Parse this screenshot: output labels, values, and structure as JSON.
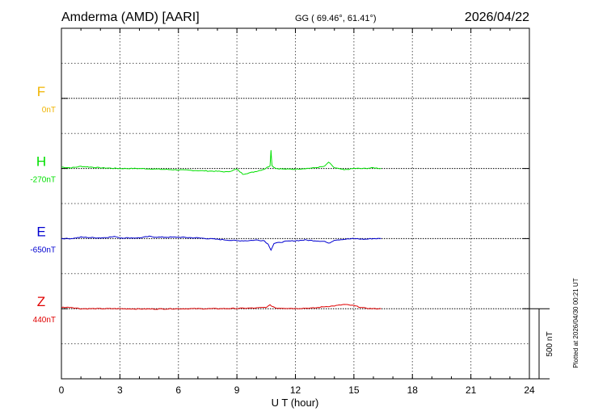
{
  "header": {
    "station": "Amderma (AMD)  [AARI]",
    "coords": "GG ( 69.46°,  61.41°)",
    "date": "2026/04/22"
  },
  "footer": {
    "plotted": "Plotted at 2026/04/30 00:21 UT",
    "scale_label": "500 nT"
  },
  "chart_data": {
    "type": "line",
    "xlabel": "U T (hour)",
    "xlim": [
      0,
      24
    ],
    "xticks": [
      "0",
      "3",
      "6",
      "9",
      "12",
      "15",
      "18",
      "21",
      "24"
    ],
    "ylim": [
      -2000,
      500
    ],
    "baselines": [
      0,
      -500,
      -1000,
      -1500
    ],
    "scale_bar_nT": 500,
    "grid": true,
    "colors": {
      "F": "#f0b400",
      "H": "#00e000",
      "E": "#0000d0",
      "Z": "#e00000"
    },
    "series": [
      {
        "name": "F",
        "offset": "0nT",
        "baseline": 0,
        "x": [],
        "values": []
      },
      {
        "name": "H",
        "offset": "-270nT",
        "baseline": -500,
        "x": [
          0,
          0.5,
          1,
          2,
          3,
          4,
          5,
          6,
          7,
          8,
          8.5,
          9,
          9.3,
          9.7,
          10,
          10.4,
          10.7,
          10.75,
          10.8,
          11,
          11.5,
          12,
          12.5,
          13,
          13.5,
          13.7,
          14,
          14.5,
          15,
          15.5,
          16,
          16.4
        ],
        "values": [
          10,
          5,
          15,
          5,
          0,
          0,
          -5,
          -10,
          -15,
          -20,
          -25,
          -5,
          -40,
          -30,
          -20,
          -5,
          20,
          130,
          20,
          0,
          -5,
          -5,
          0,
          5,
          15,
          45,
          5,
          -10,
          0,
          0,
          5,
          0
        ]
      },
      {
        "name": "E",
        "offset": "-650nT",
        "baseline": -1000,
        "x": [
          0,
          0.5,
          1,
          2,
          2.8,
          3,
          4,
          4.5,
          5,
          6,
          7,
          8,
          9,
          9.5,
          10,
          10.4,
          10.6,
          10.75,
          10.9,
          11.5,
          12,
          12.5,
          13,
          13.5,
          13.7,
          14,
          15,
          15.5,
          16,
          16.4
        ],
        "values": [
          0,
          0,
          10,
          5,
          15,
          5,
          5,
          15,
          10,
          10,
          5,
          -5,
          -15,
          -15,
          -10,
          -15,
          -40,
          -80,
          -35,
          -20,
          -15,
          -10,
          -15,
          -20,
          -35,
          -10,
          0,
          -5,
          0,
          0
        ]
      },
      {
        "name": "Z",
        "offset": "440nT",
        "baseline": -1500,
        "x": [
          0,
          0.5,
          1,
          2,
          3,
          4,
          5,
          6,
          7,
          8,
          9,
          10,
          10.5,
          10.7,
          11,
          12,
          13,
          13.5,
          14,
          14.5,
          15,
          15.5,
          16,
          16.4
        ],
        "values": [
          10,
          10,
          0,
          0,
          0,
          -2,
          -2,
          0,
          0,
          0,
          2,
          5,
          10,
          25,
          5,
          2,
          5,
          15,
          20,
          30,
          22,
          5,
          0,
          0
        ]
      }
    ]
  }
}
